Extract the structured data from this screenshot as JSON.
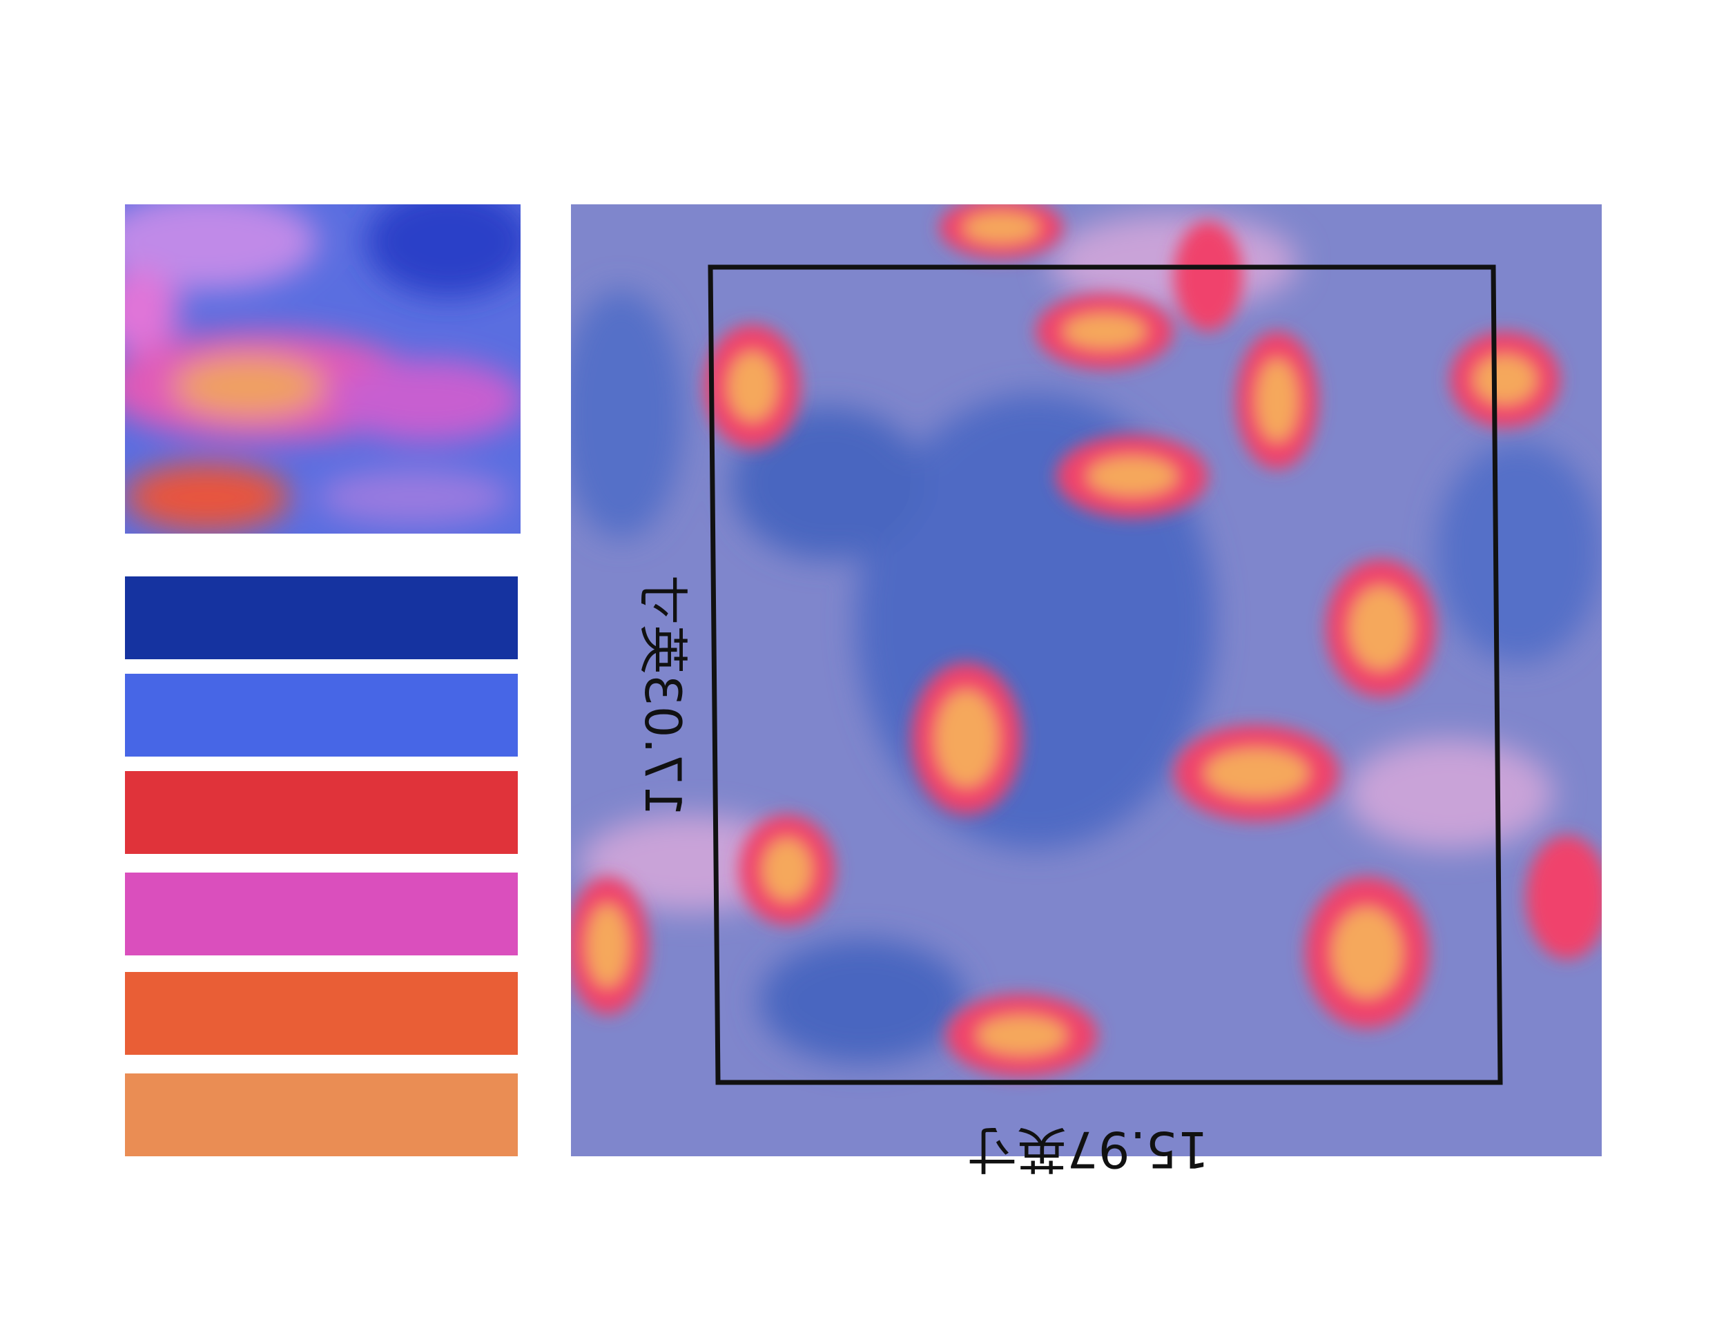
{
  "board": {
    "palette": [
      "#1533a0",
      "#4766e6",
      "#e0333a",
      "#da4fbd",
      "#e95e36",
      "#ea8d54"
    ],
    "frame": {
      "width_label": "15.97英寸",
      "height_label": "17.03英寸"
    }
  }
}
